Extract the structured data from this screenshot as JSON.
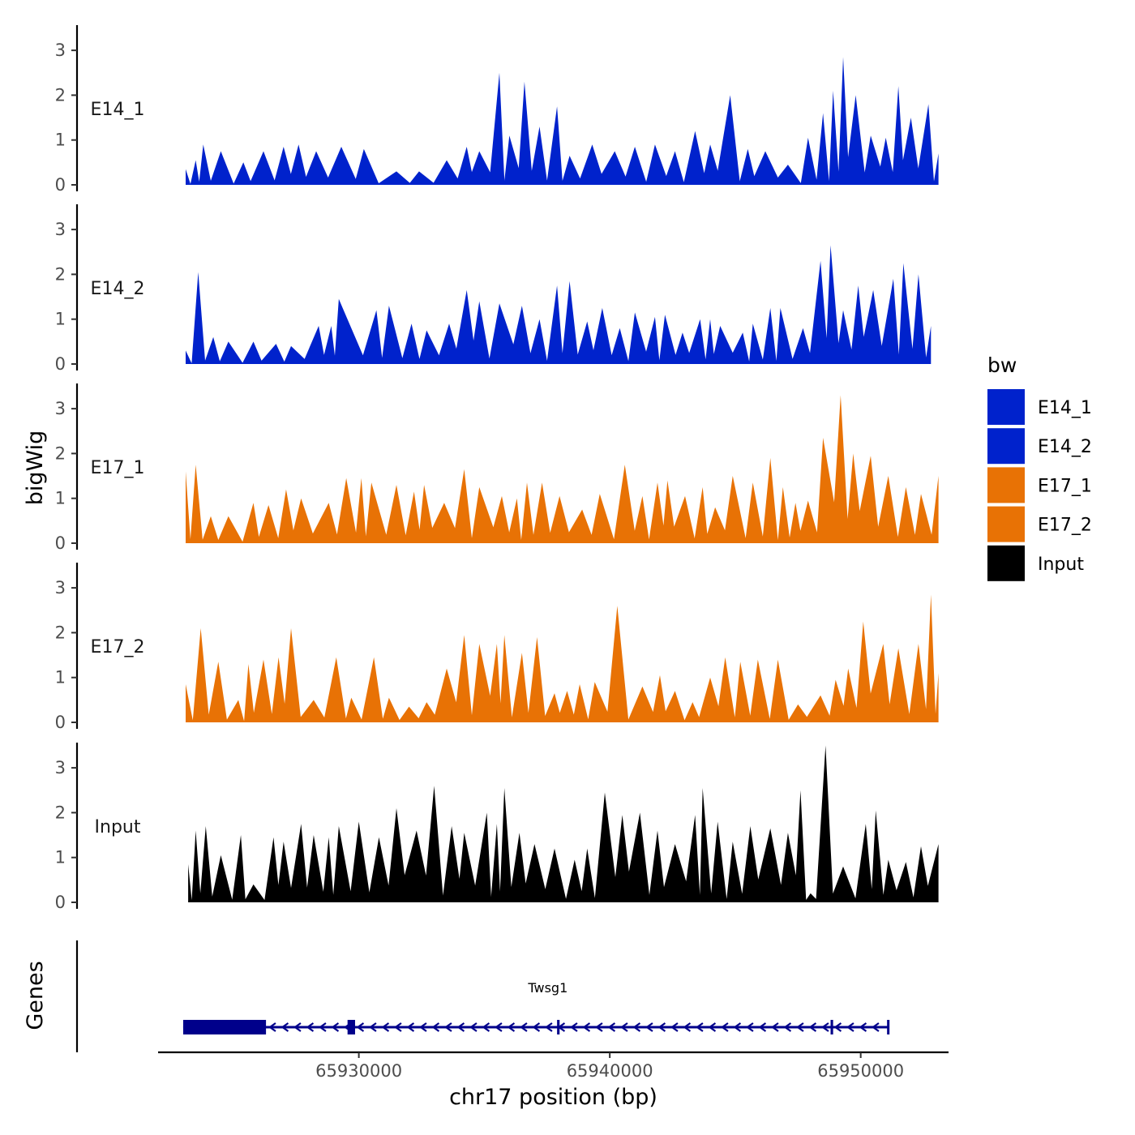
{
  "chart_data": {
    "type": "area",
    "ylabel": "bigWig",
    "xlabel": "chr17 position (bp)",
    "genes_label": "Genes",
    "xlim": [
      65922000,
      65953500
    ],
    "data_xrange": [
      65923000,
      65953200
    ],
    "ylim": [
      0,
      3.5
    ],
    "yticks": [
      {
        "value": 0,
        "label": "0"
      },
      {
        "value": 1,
        "label": "1"
      },
      {
        "value": 2,
        "label": "2"
      },
      {
        "value": 3,
        "label": "3"
      }
    ],
    "xticks": [
      {
        "value": 65930000,
        "label": "65930000"
      },
      {
        "value": 65940000,
        "label": "65940000"
      },
      {
        "value": 65950000,
        "label": "65950000"
      }
    ],
    "legend": {
      "title": "bw",
      "position": "right",
      "items": [
        {
          "name": "E14_1",
          "color": "#0022cc"
        },
        {
          "name": "E14_2",
          "color": "#0022cc"
        },
        {
          "name": "E17_1",
          "color": "#e87205"
        },
        {
          "name": "E17_2",
          "color": "#e87205"
        },
        {
          "name": "Input",
          "color": "#000000"
        }
      ]
    },
    "tracks": [
      {
        "name": "E14_1",
        "color": "#0022cc",
        "peaks": [
          [
            65923100,
            0.35
          ],
          [
            65923500,
            0.55
          ],
          [
            65923800,
            0.9
          ],
          [
            65924500,
            0.75
          ],
          [
            65925400,
            0.5
          ],
          [
            65926200,
            0.75
          ],
          [
            65927000,
            0.85
          ],
          [
            65927600,
            0.9
          ],
          [
            65928300,
            0.75
          ],
          [
            65929300,
            0.85
          ],
          [
            65930200,
            0.8
          ],
          [
            65931500,
            0.3
          ],
          [
            65932400,
            0.3
          ],
          [
            65933500,
            0.55
          ],
          [
            65934300,
            0.85
          ],
          [
            65934800,
            0.75
          ],
          [
            65935600,
            2.5
          ],
          [
            65936000,
            1.1
          ],
          [
            65936600,
            2.3
          ],
          [
            65937200,
            1.3
          ],
          [
            65937900,
            1.75
          ],
          [
            65938400,
            0.65
          ],
          [
            65939300,
            0.9
          ],
          [
            65940200,
            0.75
          ],
          [
            65941000,
            0.85
          ],
          [
            65941800,
            0.9
          ],
          [
            65942600,
            0.75
          ],
          [
            65943400,
            1.2
          ],
          [
            65944000,
            0.9
          ],
          [
            65944800,
            2.0
          ],
          [
            65945500,
            0.8
          ],
          [
            65946200,
            0.75
          ],
          [
            65947100,
            0.45
          ],
          [
            65947900,
            1.05
          ],
          [
            65948500,
            1.6
          ],
          [
            65948900,
            2.1
          ],
          [
            65949300,
            2.85
          ],
          [
            65949800,
            2.0
          ],
          [
            65950400,
            1.1
          ],
          [
            65951000,
            1.05
          ],
          [
            65951500,
            2.2
          ],
          [
            65952000,
            1.5
          ],
          [
            65952700,
            1.8
          ],
          [
            65953100,
            0.7
          ]
        ]
      },
      {
        "name": "E14_2",
        "color": "#0022cc",
        "peaks": [
          [
            65923100,
            0.3
          ],
          [
            65923600,
            2.05
          ],
          [
            65924200,
            0.6
          ],
          [
            65924800,
            0.5
          ],
          [
            65925800,
            0.5
          ],
          [
            65926700,
            0.45
          ],
          [
            65927300,
            0.4
          ],
          [
            65928400,
            0.85
          ],
          [
            65928900,
            0.85
          ],
          [
            65929200,
            1.45
          ],
          [
            65930700,
            1.2
          ],
          [
            65931200,
            1.3
          ],
          [
            65932100,
            0.9
          ],
          [
            65932700,
            0.75
          ],
          [
            65933600,
            0.9
          ],
          [
            65934300,
            1.65
          ],
          [
            65934800,
            1.4
          ],
          [
            65935600,
            1.35
          ],
          [
            65936500,
            1.3
          ],
          [
            65937200,
            1.0
          ],
          [
            65937900,
            1.75
          ],
          [
            65938400,
            1.85
          ],
          [
            65939100,
            0.95
          ],
          [
            65939700,
            1.25
          ],
          [
            65940400,
            0.8
          ],
          [
            65941000,
            1.15
          ],
          [
            65941800,
            1.05
          ],
          [
            65942200,
            1.1
          ],
          [
            65942900,
            0.7
          ],
          [
            65943600,
            1.0
          ],
          [
            65944000,
            1.0
          ],
          [
            65944400,
            0.85
          ],
          [
            65945300,
            0.7
          ],
          [
            65945700,
            0.9
          ],
          [
            65946400,
            1.25
          ],
          [
            65946800,
            1.25
          ],
          [
            65947700,
            0.8
          ],
          [
            65948400,
            2.3
          ],
          [
            65948800,
            2.65
          ],
          [
            65949300,
            1.2
          ],
          [
            65949900,
            1.75
          ],
          [
            65950500,
            1.65
          ],
          [
            65951300,
            1.9
          ],
          [
            65951700,
            2.25
          ],
          [
            65952300,
            2.0
          ],
          [
            65952800,
            0.85
          ]
        ]
      },
      {
        "name": "E17_1",
        "color": "#e87205",
        "peaks": [
          [
            65923100,
            1.6
          ],
          [
            65923500,
            1.75
          ],
          [
            65924100,
            0.6
          ],
          [
            65924800,
            0.6
          ],
          [
            65925800,
            0.9
          ],
          [
            65926400,
            0.85
          ],
          [
            65927100,
            1.2
          ],
          [
            65927700,
            1.0
          ],
          [
            65928800,
            0.9
          ],
          [
            65929500,
            1.45
          ],
          [
            65930100,
            1.45
          ],
          [
            65930500,
            1.35
          ],
          [
            65931500,
            1.3
          ],
          [
            65932200,
            1.15
          ],
          [
            65932600,
            1.3
          ],
          [
            65933400,
            0.9
          ],
          [
            65934200,
            1.65
          ],
          [
            65934800,
            1.25
          ],
          [
            65935700,
            1.05
          ],
          [
            65936300,
            1.0
          ],
          [
            65936700,
            1.35
          ],
          [
            65937300,
            1.35
          ],
          [
            65938000,
            1.05
          ],
          [
            65938900,
            0.75
          ],
          [
            65939600,
            1.1
          ],
          [
            65940600,
            1.75
          ],
          [
            65941300,
            1.05
          ],
          [
            65941900,
            1.35
          ],
          [
            65942300,
            1.4
          ],
          [
            65943000,
            1.05
          ],
          [
            65943700,
            1.25
          ],
          [
            65944200,
            0.8
          ],
          [
            65944900,
            1.5
          ],
          [
            65945700,
            1.35
          ],
          [
            65946400,
            1.9
          ],
          [
            65946900,
            1.25
          ],
          [
            65947400,
            0.9
          ],
          [
            65947900,
            0.95
          ],
          [
            65948500,
            2.35
          ],
          [
            65949200,
            3.3
          ],
          [
            65949700,
            2.0
          ],
          [
            65950400,
            1.95
          ],
          [
            65951100,
            1.5
          ],
          [
            65951800,
            1.25
          ],
          [
            65952400,
            1.1
          ],
          [
            65953100,
            1.5
          ]
        ]
      },
      {
        "name": "E17_2",
        "color": "#e87205",
        "peaks": [
          [
            65923100,
            0.85
          ],
          [
            65923700,
            2.1
          ],
          [
            65924400,
            1.35
          ],
          [
            65925200,
            0.5
          ],
          [
            65925600,
            1.3
          ],
          [
            65926200,
            1.4
          ],
          [
            65926800,
            1.45
          ],
          [
            65927300,
            2.1
          ],
          [
            65928200,
            0.5
          ],
          [
            65929100,
            1.45
          ],
          [
            65929700,
            0.55
          ],
          [
            65930600,
            1.45
          ],
          [
            65931200,
            0.55
          ],
          [
            65932000,
            0.35
          ],
          [
            65932700,
            0.45
          ],
          [
            65933500,
            1.2
          ],
          [
            65934200,
            1.95
          ],
          [
            65934800,
            1.75
          ],
          [
            65935500,
            1.75
          ],
          [
            65935800,
            1.95
          ],
          [
            65936500,
            1.55
          ],
          [
            65937100,
            1.9
          ],
          [
            65937800,
            0.65
          ],
          [
            65938300,
            0.7
          ],
          [
            65938800,
            0.85
          ],
          [
            65939400,
            0.9
          ],
          [
            65940300,
            2.6
          ],
          [
            65941300,
            0.8
          ],
          [
            65942000,
            1.05
          ],
          [
            65942600,
            0.7
          ],
          [
            65943300,
            0.45
          ],
          [
            65944000,
            1.0
          ],
          [
            65944600,
            1.45
          ],
          [
            65945200,
            1.35
          ],
          [
            65945900,
            1.4
          ],
          [
            65946700,
            1.4
          ],
          [
            65947500,
            0.4
          ],
          [
            65948400,
            0.6
          ],
          [
            65949000,
            0.95
          ],
          [
            65949500,
            1.2
          ],
          [
            65950100,
            2.25
          ],
          [
            65950900,
            1.75
          ],
          [
            65951500,
            1.65
          ],
          [
            65952300,
            1.75
          ],
          [
            65952800,
            2.85
          ],
          [
            65953100,
            1.1
          ]
        ]
      },
      {
        "name": "Input",
        "color": "#000000",
        "peaks": [
          [
            65923200,
            0.85
          ],
          [
            65923500,
            1.6
          ],
          [
            65923900,
            1.7
          ],
          [
            65924500,
            1.05
          ],
          [
            65925300,
            1.5
          ],
          [
            65925800,
            0.4
          ],
          [
            65926600,
            1.45
          ],
          [
            65927000,
            1.35
          ],
          [
            65927700,
            1.75
          ],
          [
            65928200,
            1.5
          ],
          [
            65928800,
            1.45
          ],
          [
            65929200,
            1.7
          ],
          [
            65930000,
            1.8
          ],
          [
            65930800,
            1.45
          ],
          [
            65931500,
            2.1
          ],
          [
            65932300,
            1.6
          ],
          [
            65933000,
            2.6
          ],
          [
            65933700,
            1.7
          ],
          [
            65934200,
            1.55
          ],
          [
            65935100,
            2.0
          ],
          [
            65935500,
            1.75
          ],
          [
            65935800,
            2.55
          ],
          [
            65936400,
            1.55
          ],
          [
            65937000,
            1.3
          ],
          [
            65937800,
            1.2
          ],
          [
            65938600,
            0.95
          ],
          [
            65939100,
            1.2
          ],
          [
            65939800,
            2.45
          ],
          [
            65940500,
            1.95
          ],
          [
            65941200,
            2.0
          ],
          [
            65941900,
            1.6
          ],
          [
            65942600,
            1.3
          ],
          [
            65943400,
            1.95
          ],
          [
            65943700,
            2.55
          ],
          [
            65944300,
            1.8
          ],
          [
            65944900,
            1.35
          ],
          [
            65945600,
            1.7
          ],
          [
            65946400,
            1.65
          ],
          [
            65947100,
            1.55
          ],
          [
            65947600,
            2.5
          ],
          [
            65948000,
            0.2
          ],
          [
            65948600,
            3.5
          ],
          [
            65949300,
            0.8
          ],
          [
            65950200,
            1.75
          ],
          [
            65950600,
            2.05
          ],
          [
            65951100,
            0.95
          ],
          [
            65951800,
            0.9
          ],
          [
            65952400,
            1.25
          ],
          [
            65953100,
            1.3
          ]
        ]
      }
    ],
    "gene": {
      "name": "Twsg1",
      "color": "#00008b",
      "start": 65923000,
      "end": 65951100,
      "strand": "-",
      "exons": [
        [
          65923000,
          65926300
        ],
        [
          65929550,
          65929850
        ],
        [
          65937900,
          65938000
        ],
        [
          65948800,
          65948900
        ],
        [
          65951050,
          65951100
        ]
      ]
    }
  }
}
